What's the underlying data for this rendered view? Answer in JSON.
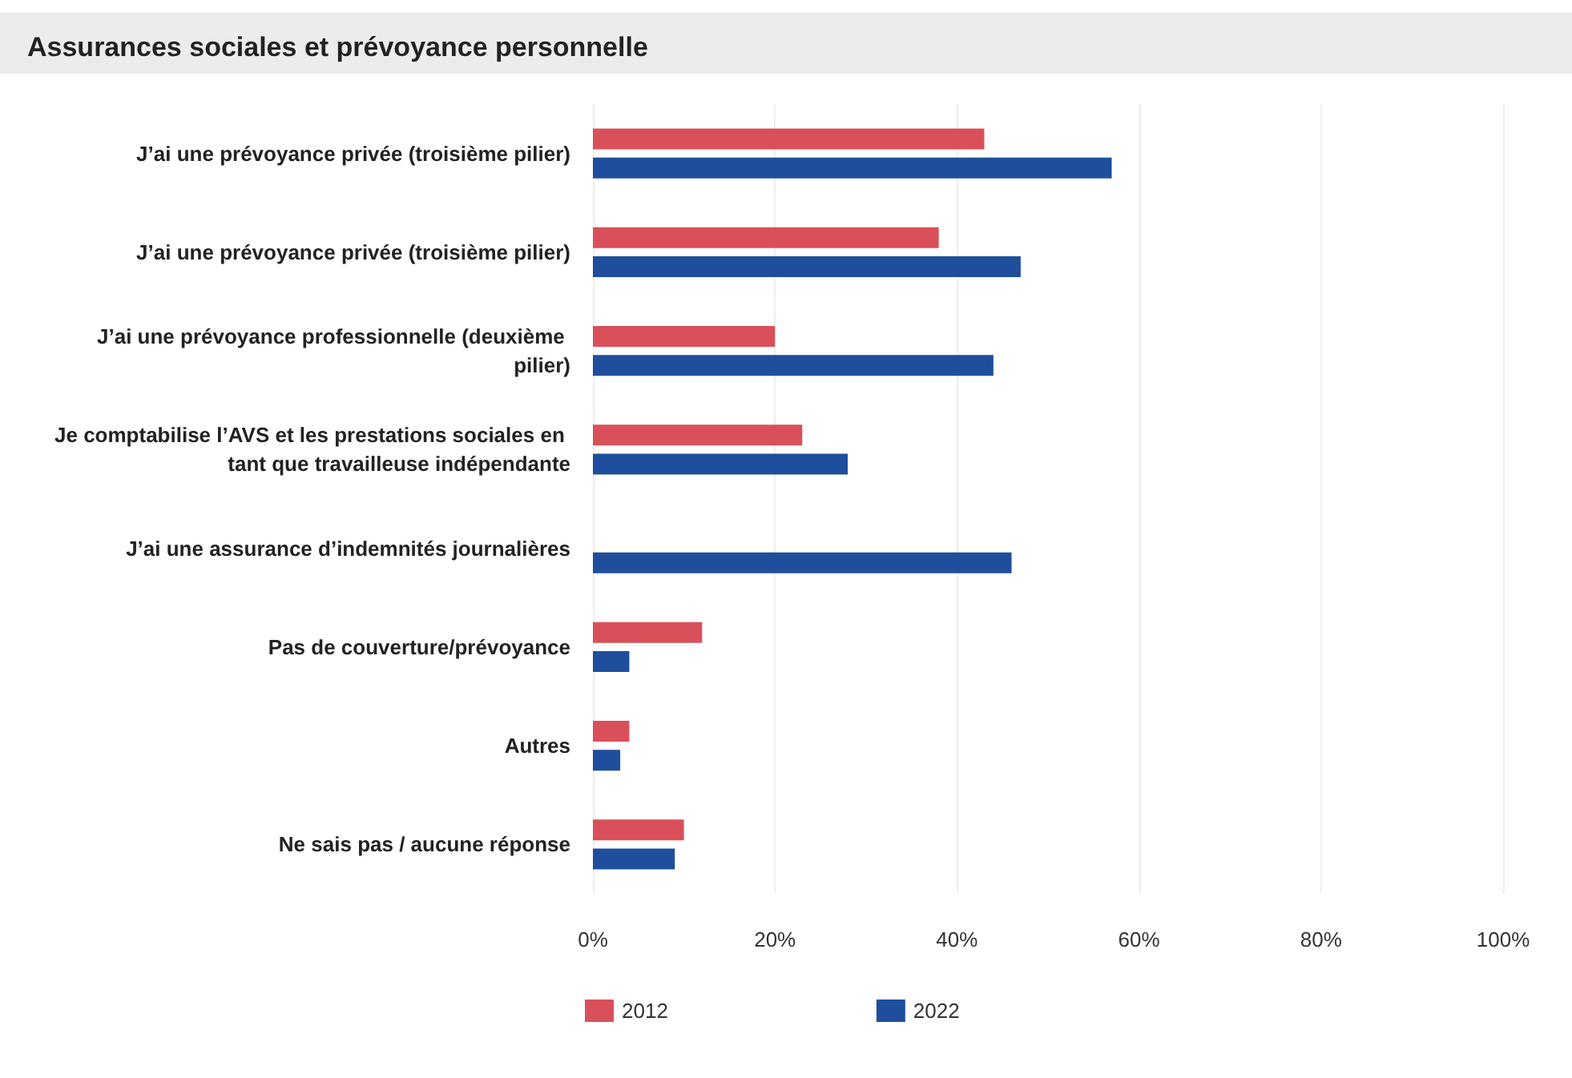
{
  "chart_data": {
    "type": "bar",
    "orientation": "horizontal",
    "title": "Assurances sociales et prévoyance personnelle",
    "categories": [
      "J’ai une prévoyance privée (troisième pilier)",
      "J’ai une prévoyance privée (troisième pilier)",
      "J’ai une prévoyance professionnelle (deuxième pilier)",
      "Je comptabilise l’AVS et les prestations sociales en tant que travailleuse indépendante",
      "J’ai une assurance d’indemnités journalières",
      "Pas de couverture/prévoyance",
      "Autres",
      "Ne sais pas / aucune réponse"
    ],
    "series": [
      {
        "name": "2012",
        "color": "#d9505a",
        "values": [
          43,
          38,
          20,
          23,
          null,
          12,
          4,
          10
        ]
      },
      {
        "name": "2022",
        "color": "#1f4e9c",
        "values": [
          57,
          47,
          44,
          28,
          46,
          4,
          3,
          9
        ]
      }
    ],
    "xlim": [
      0,
      100
    ],
    "xticks": [
      {
        "value": 0,
        "label": "0%"
      },
      {
        "value": 20,
        "label": "20%"
      },
      {
        "value": 40,
        "label": "40%"
      },
      {
        "value": 60,
        "label": "60%"
      },
      {
        "value": 80,
        "label": "80%"
      },
      {
        "value": 100,
        "label": "100%"
      }
    ],
    "grid": "x",
    "legend": "bottom left"
  }
}
